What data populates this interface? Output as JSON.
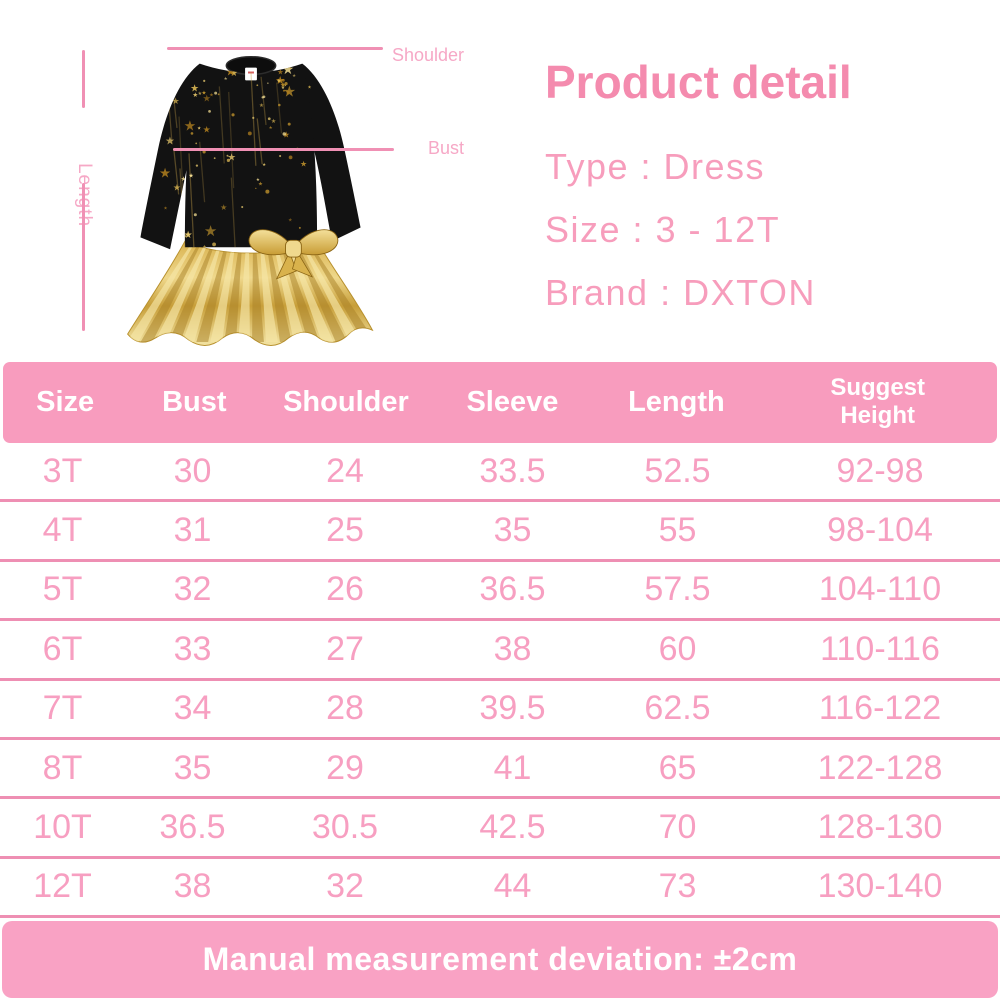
{
  "colors": {
    "pink_title": "#F48BAE",
    "pink_body": "#F79DBC",
    "pink_label": "#F6A8C6",
    "pink_line": "#F090B4",
    "pink_header_bg": "#F89CBE",
    "pink_bar_bg": "#F9A2C4",
    "pink_sep": "#EE8FB3",
    "pink_cell": "#F79FC1",
    "gold": "#D9B659",
    "dress_black": "#121212"
  },
  "hero": {
    "measurements": {
      "shoulder_label": "Shoulder",
      "bust_label": "Bust",
      "length_label": "Length"
    },
    "product": {
      "title": "Product detail",
      "type_line": "Type : Dress",
      "size_line": "Size :  3 - 12T",
      "brand_line": "Brand : DXTON"
    },
    "dress_description": "Black long-sleeve dress with gold stars and metallic gold ruffle skirt with bow"
  },
  "size_chart": {
    "headers": [
      "Size",
      "Bust",
      "Shoulder",
      "Sleeve",
      "Length",
      "Suggest Height"
    ],
    "rows": [
      [
        "3T",
        "30",
        "24",
        "33.5",
        "52.5",
        "92-98"
      ],
      [
        "4T",
        "31",
        "25",
        "35",
        "55",
        "98-104"
      ],
      [
        "5T",
        "32",
        "26",
        "36.5",
        "57.5",
        "104-110"
      ],
      [
        "6T",
        "33",
        "27",
        "38",
        "60",
        "110-116"
      ],
      [
        "7T",
        "34",
        "28",
        "39.5",
        "62.5",
        "116-122"
      ],
      [
        "8T",
        "35",
        "29",
        "41",
        "65",
        "122-128"
      ],
      [
        "10T",
        "36.5",
        "30.5",
        "42.5",
        "70",
        "128-130"
      ],
      [
        "12T",
        "38",
        "32",
        "44",
        "73",
        "130-140"
      ]
    ]
  },
  "footer": {
    "note": "Manual measurement deviation: ±2cm"
  }
}
